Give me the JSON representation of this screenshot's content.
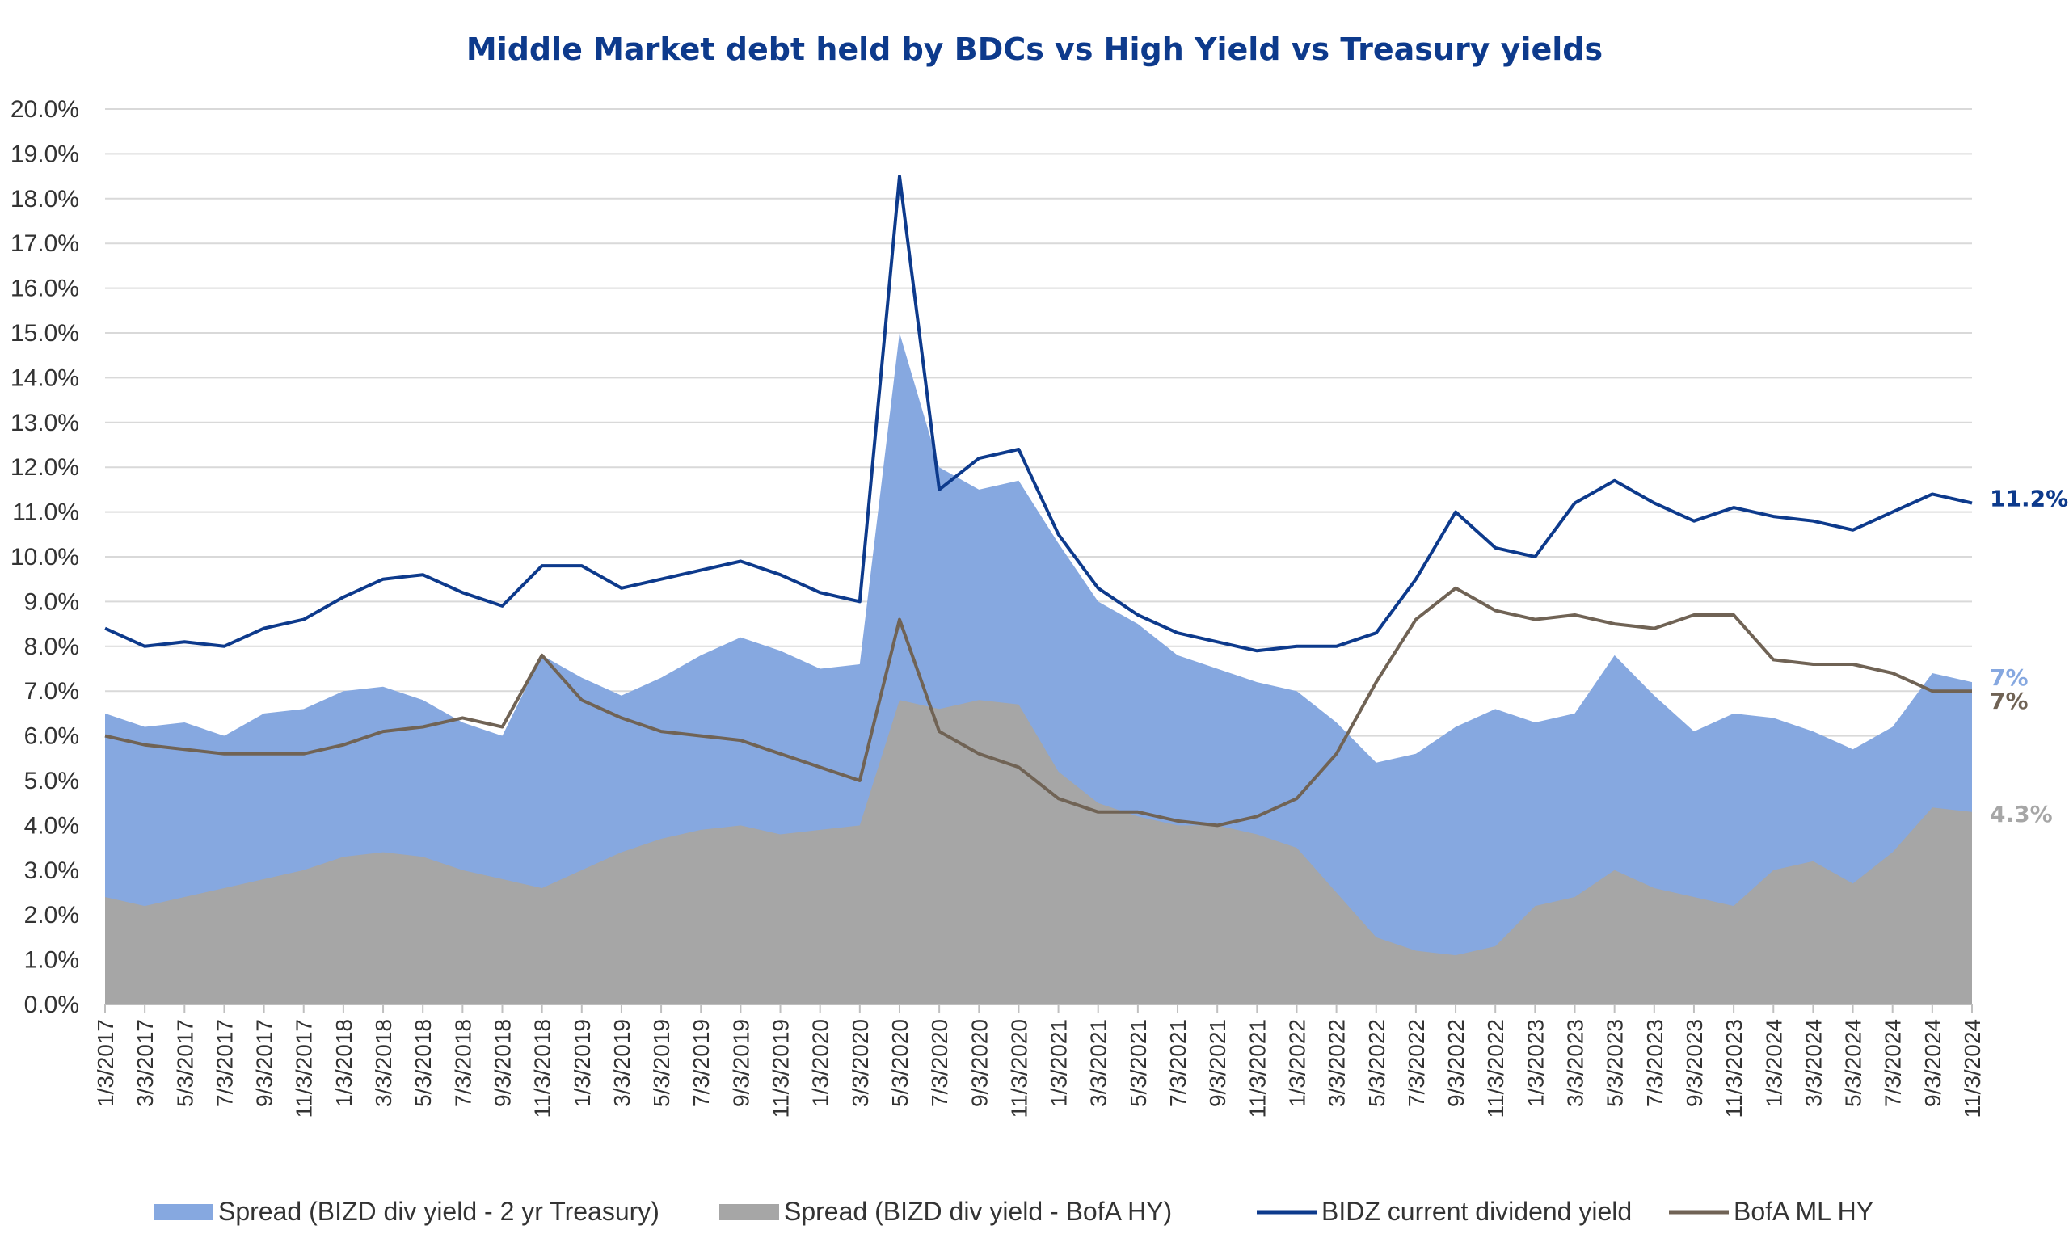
{
  "chart_data": {
    "type": "line",
    "title": "Middle Market debt held by BDCs vs High Yield vs Treasury yields",
    "xlabel": "",
    "ylabel": "",
    "ylim": [
      0,
      20
    ],
    "y_ticks": [
      "0.0%",
      "1.0%",
      "2.0%",
      "3.0%",
      "4.0%",
      "5.0%",
      "6.0%",
      "7.0%",
      "8.0%",
      "9.0%",
      "10.0%",
      "11.0%",
      "12.0%",
      "13.0%",
      "14.0%",
      "15.0%",
      "16.0%",
      "17.0%",
      "18.0%",
      "19.0%",
      "20.0%"
    ],
    "x_ticks": [
      "1/3/2017",
      "3/3/2017",
      "5/3/2017",
      "7/3/2017",
      "9/3/2017",
      "11/3/2017",
      "1/3/2018",
      "3/3/2018",
      "5/3/2018",
      "7/3/2018",
      "9/3/2018",
      "11/3/2018",
      "1/3/2019",
      "3/3/2019",
      "5/3/2019",
      "7/3/2019",
      "9/3/2019",
      "11/3/2019",
      "1/3/2020",
      "3/3/2020",
      "5/3/2020",
      "7/3/2020",
      "9/3/2020",
      "11/3/2020",
      "1/3/2021",
      "3/3/2021",
      "5/3/2021",
      "7/3/2021",
      "9/3/2021",
      "11/3/2021",
      "1/3/2022",
      "3/3/2022",
      "5/3/2022",
      "7/3/2022",
      "9/3/2022",
      "11/3/2022",
      "1/3/2023",
      "3/3/2023",
      "5/3/2023",
      "7/3/2023",
      "9/3/2023",
      "11/3/2023",
      "1/3/2024",
      "3/3/2024",
      "5/3/2024",
      "7/3/2024",
      "9/3/2024",
      "11/3/2024"
    ],
    "grid": true,
    "legend_position": "bottom",
    "series": [
      {
        "name": "Spread (BIZD div yield - 2 yr Treasury)",
        "kind": "area",
        "color": "#86a8e0",
        "end_label": "7%",
        "end_label_color": "#86a8e0",
        "values": [
          6.5,
          6.2,
          6.3,
          6.0,
          6.5,
          6.6,
          7.0,
          7.1,
          6.8,
          6.3,
          6.0,
          7.8,
          7.3,
          6.9,
          7.3,
          7.8,
          8.2,
          7.9,
          7.5,
          7.6,
          15.0,
          12.0,
          11.5,
          11.7,
          10.3,
          9.0,
          8.5,
          7.8,
          7.5,
          7.2,
          7.0,
          6.3,
          5.4,
          5.6,
          6.2,
          6.6,
          6.3,
          6.5,
          7.8,
          6.9,
          6.1,
          6.5,
          6.4,
          6.1,
          5.7,
          6.2,
          7.4,
          7.2
        ]
      },
      {
        "name": "Spread (BIZD div yield - BofA HY)",
        "kind": "area",
        "color": "#a6a6a6",
        "end_label": "4.3%",
        "end_label_color": "#a6a6a6",
        "values": [
          2.4,
          2.2,
          2.4,
          2.6,
          2.8,
          3.0,
          3.3,
          3.4,
          3.3,
          3.0,
          2.8,
          2.6,
          3.0,
          3.4,
          3.7,
          3.9,
          4.0,
          3.8,
          3.9,
          4.0,
          6.8,
          6.6,
          6.8,
          6.7,
          5.2,
          4.5,
          4.2,
          4.0,
          4.0,
          3.8,
          3.5,
          2.5,
          1.5,
          1.2,
          1.1,
          1.3,
          2.2,
          2.4,
          3.0,
          2.6,
          2.4,
          2.2,
          3.0,
          3.2,
          2.7,
          3.4,
          4.4,
          4.3
        ]
      },
      {
        "name": "BIDZ current dividend yield",
        "kind": "line",
        "color": "#0d3a8c",
        "end_label": "11.2%",
        "end_label_color": "#0d3a8c",
        "values": [
          8.4,
          8.0,
          8.1,
          8.0,
          8.4,
          8.6,
          9.1,
          9.5,
          9.6,
          9.2,
          8.9,
          9.8,
          9.8,
          9.3,
          9.5,
          9.7,
          9.9,
          9.6,
          9.2,
          9.0,
          18.5,
          11.5,
          12.2,
          12.4,
          10.5,
          9.3,
          8.7,
          8.3,
          8.1,
          7.9,
          8.0,
          8.0,
          8.3,
          9.5,
          11.0,
          10.2,
          10.0,
          11.2,
          11.7,
          11.2,
          10.8,
          11.1,
          10.9,
          10.8,
          10.6,
          11.0,
          11.4,
          11.2
        ]
      },
      {
        "name": "BofA ML HY",
        "kind": "line",
        "color": "#706355",
        "end_label": "7%",
        "end_label_color": "#706355",
        "values": [
          6.0,
          5.8,
          5.7,
          5.6,
          5.6,
          5.6,
          5.8,
          6.1,
          6.2,
          6.4,
          6.2,
          7.8,
          6.8,
          6.4,
          6.1,
          6.0,
          5.9,
          5.6,
          5.3,
          5.0,
          8.6,
          6.1,
          5.6,
          5.3,
          4.6,
          4.3,
          4.3,
          4.1,
          4.0,
          4.2,
          4.6,
          5.6,
          7.2,
          8.6,
          9.3,
          8.8,
          8.6,
          8.7,
          8.5,
          8.4,
          8.7,
          8.7,
          7.7,
          7.6,
          7.6,
          7.4,
          7.0,
          7.0
        ]
      }
    ]
  }
}
